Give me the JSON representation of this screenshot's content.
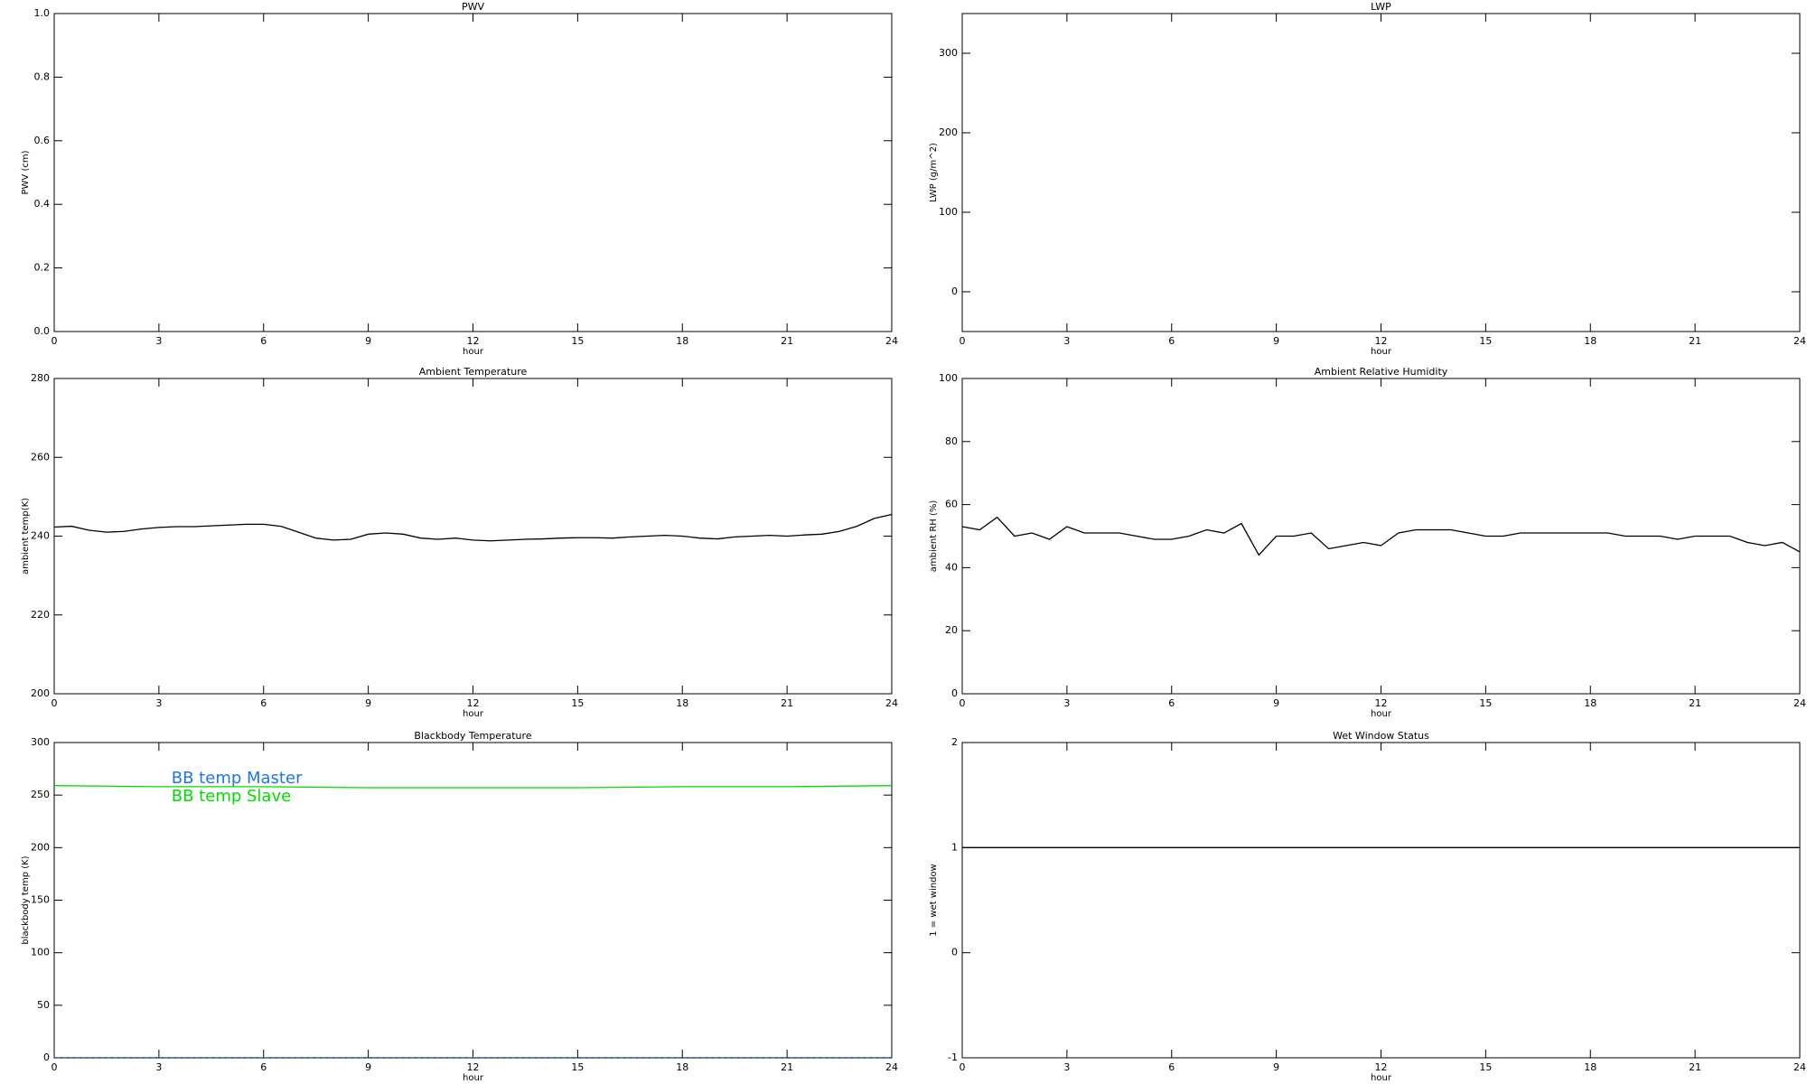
{
  "chart_data": [
    {
      "type": "line",
      "title": "PWV",
      "xlabel": "hour",
      "ylabel": "PWV (cm)",
      "xlim": [
        0,
        24
      ],
      "xticks": [
        0,
        3,
        6,
        9,
        12,
        15,
        18,
        21,
        24
      ],
      "ylim": [
        0,
        1
      ],
      "yticks": [
        {
          "value": 0,
          "label": "0.0"
        },
        {
          "value": 0.2,
          "label": "0.2"
        },
        {
          "value": 0.4,
          "label": "0.4"
        },
        {
          "value": 0.6,
          "label": "0.6"
        },
        {
          "value": 0.8,
          "label": "0.8"
        },
        {
          "value": 1,
          "label": "1.0"
        }
      ]
    },
    {
      "type": "line",
      "title": "LWP",
      "xlabel": "hour",
      "ylabel": "LWP (g/m^2)",
      "xlim": [
        0,
        24
      ],
      "xticks": [
        0,
        3,
        6,
        9,
        12,
        15,
        18,
        21,
        24
      ],
      "ylim": [
        -50,
        350
      ],
      "yticks": [
        0,
        100,
        200,
        300
      ]
    },
    {
      "type": "line",
      "title": "Ambient Temperature",
      "xlabel": "hour",
      "ylabel": "ambient temp(K)",
      "xlim": [
        0,
        24
      ],
      "xticks": [
        0,
        3,
        6,
        9,
        12,
        15,
        18,
        21,
        24
      ],
      "ylim": [
        200,
        280
      ],
      "yticks": [
        200,
        220,
        240,
        260,
        280
      ],
      "x": [
        0,
        0.5,
        1,
        1.5,
        2,
        2.5,
        3,
        3.5,
        4,
        4.5,
        5,
        5.5,
        6,
        6.5,
        7,
        7.5,
        8,
        8.5,
        9,
        9.5,
        10,
        10.5,
        11,
        11.5,
        12,
        12.5,
        13,
        13.5,
        14,
        14.5,
        15,
        15.5,
        16,
        16.5,
        17,
        17.5,
        18,
        18.5,
        19,
        19.5,
        20,
        20.5,
        21,
        21.5,
        22,
        22.5,
        23,
        23.5,
        24
      ],
      "series": [
        {
          "color": "#000000",
          "values": [
            242.3,
            242.5,
            241.5,
            241,
            241.2,
            241.8,
            242.2,
            242.4,
            242.4,
            242.6,
            242.8,
            243,
            243,
            242.5,
            241,
            239.5,
            239,
            239.2,
            240.5,
            240.8,
            240.5,
            239.5,
            239.2,
            239.5,
            239,
            238.8,
            239,
            239.2,
            239.3,
            239.5,
            239.6,
            239.6,
            239.5,
            239.8,
            240,
            240.2,
            240,
            239.5,
            239.3,
            239.8,
            240,
            240.2,
            240,
            240.3,
            240.5,
            241.2,
            242.5,
            244.5,
            245.5
          ]
        }
      ]
    },
    {
      "type": "line",
      "title": "Ambient Relative Humidity",
      "xlabel": "hour",
      "ylabel": "ambient RH (%)",
      "xlim": [
        0,
        24
      ],
      "xticks": [
        0,
        3,
        6,
        9,
        12,
        15,
        18,
        21,
        24
      ],
      "ylim": [
        0,
        100
      ],
      "yticks": [
        0,
        20,
        40,
        60,
        80,
        100
      ],
      "x": [
        0,
        0.5,
        1,
        1.5,
        2,
        2.5,
        3,
        3.5,
        4,
        4.5,
        5,
        5.5,
        6,
        6.5,
        7,
        7.5,
        8,
        8.5,
        9,
        9.5,
        10,
        10.5,
        11,
        11.5,
        12,
        12.5,
        13,
        13.5,
        14,
        14.5,
        15,
        15.5,
        16,
        16.5,
        17,
        17.5,
        18,
        18.5,
        19,
        19.5,
        20,
        20.5,
        21,
        21.5,
        22,
        22.5,
        23,
        23.5,
        24
      ],
      "series": [
        {
          "color": "#000000",
          "values": [
            53,
            52,
            56,
            50,
            51,
            49,
            53,
            51,
            51,
            51,
            50,
            49,
            49,
            50,
            52,
            51,
            54,
            44,
            50,
            50,
            51,
            46,
            47,
            48,
            47,
            51,
            52,
            52,
            52,
            51,
            50,
            50,
            51,
            51,
            51,
            51,
            51,
            51,
            50,
            50,
            50,
            49,
            50,
            50,
            50,
            48,
            47,
            48,
            45
          ]
        }
      ]
    },
    {
      "type": "line",
      "title": "Blackbody Temperature",
      "xlabel": "hour",
      "ylabel": "blackbody temp (K)",
      "xlim": [
        0,
        24
      ],
      "xticks": [
        0,
        3,
        6,
        9,
        12,
        15,
        18,
        21,
        24
      ],
      "ylim": [
        0,
        300
      ],
      "yticks": [
        0,
        50,
        100,
        150,
        200,
        250,
        300
      ],
      "legend": "upper-left",
      "x": [
        0,
        3,
        6,
        9,
        12,
        15,
        18,
        21,
        24
      ],
      "series": [
        {
          "name": "BB temp Master",
          "color": "#1f77e4",
          "linestyle": "dotted",
          "values": [
            0,
            0,
            0,
            0,
            0,
            0,
            0,
            0,
            0
          ]
        },
        {
          "name": "BB temp Slave",
          "color": "#00dd00",
          "values": [
            259,
            258,
            258,
            257,
            257,
            257,
            258,
            258,
            259
          ]
        }
      ]
    },
    {
      "type": "line",
      "title": "Wet Window Status",
      "xlabel": "hour",
      "ylabel": "1 = wet window",
      "xlim": [
        0,
        24
      ],
      "xticks": [
        0,
        3,
        6,
        9,
        12,
        15,
        18,
        21,
        24
      ],
      "ylim": [
        -1,
        2
      ],
      "yticks": [
        -1,
        0,
        1,
        2
      ],
      "x": [
        0,
        24
      ],
      "series": [
        {
          "color": "#000000",
          "values": [
            1,
            1
          ]
        }
      ]
    }
  ]
}
